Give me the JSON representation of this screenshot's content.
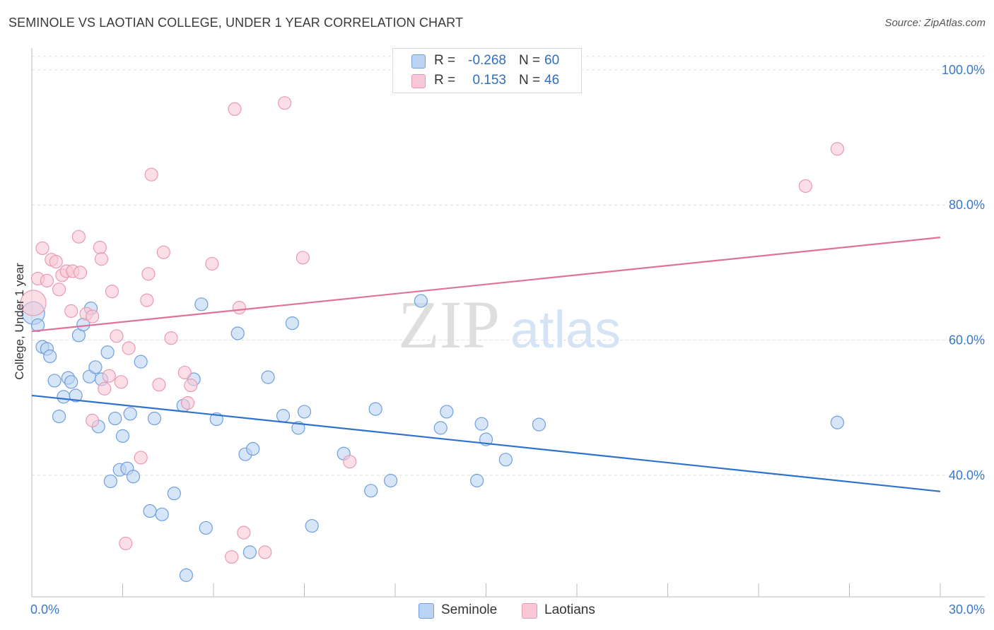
{
  "title": "SEMINOLE VS LAOTIAN COLLEGE, UNDER 1 YEAR CORRELATION CHART",
  "source": "Source: ZipAtlas.com",
  "watermark": {
    "zip": "ZIP",
    "atlas": "atlas"
  },
  "legend": {
    "rows": [
      {
        "r_label": "R =",
        "r_value": "-0.268",
        "n_label": "N =",
        "n_value": "60"
      },
      {
        "r_label": "R =",
        "r_value": "0.153",
        "n_label": "N =",
        "n_value": "46"
      }
    ]
  },
  "bottom_legend": {
    "seminole": "Seminole",
    "laotians": "Laotians"
  },
  "colors": {
    "seminole_fill": "#bcd4f4",
    "seminole_stroke": "#6f9fdc",
    "seminole_line": "#2f72cc",
    "laotians_fill": "#f8c8d6",
    "laotians_stroke": "#e99ab3",
    "laotians_line": "#e0729a",
    "tick_label": "#3a78c9",
    "grid": "#dddddd"
  },
  "chart_data": {
    "type": "scatter",
    "title": "SEMINOLE VS LAOTIAN COLLEGE, UNDER 1 YEAR CORRELATION CHART",
    "xlabel": "",
    "ylabel": "College, Under 1 year",
    "xlim": [
      0,
      30
    ],
    "ylim": [
      22,
      103
    ],
    "x_tick_labels": [
      "0.0%",
      "30.0%"
    ],
    "y_ticks": [
      40,
      60,
      80,
      100
    ],
    "y_tick_labels": [
      "40.0%",
      "60.0%",
      "80.0%",
      "100.0%"
    ],
    "grid": "horizontal dashed",
    "legend_position": "top-center",
    "series": [
      {
        "name": "Seminole",
        "r": -0.268,
        "n": 60,
        "trend": {
          "x": [
            0,
            30
          ],
          "y": [
            51.8,
            37.6
          ]
        },
        "points": [
          [
            0.05,
            64.0,
            16
          ],
          [
            0.2,
            62.2,
            9
          ],
          [
            0.35,
            59.0,
            9
          ],
          [
            0.5,
            58.7,
            9
          ],
          [
            0.6,
            57.6,
            9
          ],
          [
            0.75,
            54.0,
            9
          ],
          [
            0.9,
            48.7,
            9
          ],
          [
            1.05,
            51.6,
            9
          ],
          [
            1.2,
            54.4,
            9
          ],
          [
            1.3,
            53.8,
            9
          ],
          [
            1.45,
            51.8,
            9
          ],
          [
            1.55,
            60.7,
            9
          ],
          [
            1.7,
            62.3,
            9
          ],
          [
            1.9,
            54.6,
            9
          ],
          [
            1.95,
            64.7,
            9
          ],
          [
            2.1,
            56.0,
            9
          ],
          [
            2.2,
            47.2,
            9
          ],
          [
            2.3,
            54.2,
            9
          ],
          [
            2.5,
            58.2,
            9
          ],
          [
            2.6,
            39.1,
            9
          ],
          [
            2.75,
            48.4,
            9
          ],
          [
            2.9,
            40.8,
            9
          ],
          [
            3.0,
            45.8,
            9
          ],
          [
            3.15,
            41.0,
            9
          ],
          [
            3.25,
            49.1,
            9
          ],
          [
            3.35,
            39.8,
            9
          ],
          [
            3.6,
            56.8,
            9
          ],
          [
            3.9,
            34.7,
            9
          ],
          [
            4.05,
            48.4,
            9
          ],
          [
            4.3,
            34.2,
            9
          ],
          [
            4.7,
            37.3,
            9
          ],
          [
            5.0,
            50.3,
            9
          ],
          [
            5.1,
            25.2,
            9
          ],
          [
            5.35,
            54.2,
            9
          ],
          [
            5.6,
            65.3,
            9
          ],
          [
            5.75,
            32.2,
            9
          ],
          [
            6.1,
            48.3,
            9
          ],
          [
            6.8,
            61.0,
            9
          ],
          [
            7.05,
            43.1,
            9
          ],
          [
            7.2,
            28.6,
            9
          ],
          [
            7.3,
            43.9,
            9
          ],
          [
            7.8,
            54.5,
            9
          ],
          [
            8.3,
            48.8,
            9
          ],
          [
            8.6,
            62.5,
            9
          ],
          [
            8.8,
            47.0,
            9
          ],
          [
            9.0,
            49.4,
            9
          ],
          [
            9.25,
            32.5,
            9
          ],
          [
            10.3,
            43.2,
            9
          ],
          [
            11.2,
            37.7,
            9
          ],
          [
            11.35,
            49.8,
            9
          ],
          [
            11.85,
            39.2,
            9
          ],
          [
            12.85,
            65.8,
            9
          ],
          [
            13.5,
            47.0,
            9
          ],
          [
            13.7,
            49.4,
            9
          ],
          [
            14.7,
            39.2,
            9
          ],
          [
            14.85,
            47.6,
            9
          ],
          [
            15.0,
            45.3,
            9
          ],
          [
            15.65,
            42.3,
            9
          ],
          [
            16.75,
            47.5,
            9
          ],
          [
            26.6,
            47.8,
            9
          ]
        ]
      },
      {
        "name": "Laotians",
        "r": 0.153,
        "n": 46,
        "trend": {
          "x": [
            0,
            30
          ],
          "y": [
            61.3,
            75.2
          ]
        },
        "points": [
          [
            0.05,
            65.5,
            18
          ],
          [
            0.2,
            69.1,
            9
          ],
          [
            0.35,
            73.6,
            9
          ],
          [
            0.5,
            68.8,
            9
          ],
          [
            0.65,
            71.9,
            9
          ],
          [
            0.8,
            71.6,
            9
          ],
          [
            0.9,
            67.5,
            9
          ],
          [
            1.0,
            69.6,
            9
          ],
          [
            1.15,
            70.2,
            9
          ],
          [
            1.3,
            64.3,
            9
          ],
          [
            1.35,
            70.2,
            9
          ],
          [
            1.55,
            75.3,
            9
          ],
          [
            1.6,
            70.0,
            9
          ],
          [
            1.8,
            63.9,
            9
          ],
          [
            2.0,
            63.5,
            9
          ],
          [
            2.0,
            48.1,
            9
          ],
          [
            2.25,
            73.7,
            9
          ],
          [
            2.3,
            72.0,
            9
          ],
          [
            2.4,
            52.8,
            9
          ],
          [
            2.55,
            54.7,
            9
          ],
          [
            2.65,
            67.2,
            9
          ],
          [
            2.8,
            60.6,
            9
          ],
          [
            2.95,
            53.8,
            9
          ],
          [
            3.1,
            29.9,
            9
          ],
          [
            3.2,
            58.8,
            9
          ],
          [
            3.6,
            42.6,
            9
          ],
          [
            3.8,
            65.9,
            9
          ],
          [
            3.85,
            69.8,
            9
          ],
          [
            3.95,
            84.5,
            9
          ],
          [
            4.2,
            53.4,
            9
          ],
          [
            4.35,
            73.0,
            9
          ],
          [
            4.6,
            60.3,
            9
          ],
          [
            5.05,
            55.2,
            9
          ],
          [
            5.15,
            50.7,
            9
          ],
          [
            5.25,
            53.3,
            9
          ],
          [
            5.95,
            71.3,
            9
          ],
          [
            6.6,
            27.9,
            9
          ],
          [
            6.7,
            94.2,
            9
          ],
          [
            6.85,
            64.8,
            9
          ],
          [
            7.0,
            31.5,
            9
          ],
          [
            7.7,
            28.6,
            9
          ],
          [
            8.35,
            95.1,
            9
          ],
          [
            8.95,
            72.2,
            9
          ],
          [
            10.5,
            42.0,
            9
          ],
          [
            25.55,
            82.8,
            9
          ],
          [
            26.6,
            88.3,
            9
          ]
        ]
      }
    ]
  }
}
